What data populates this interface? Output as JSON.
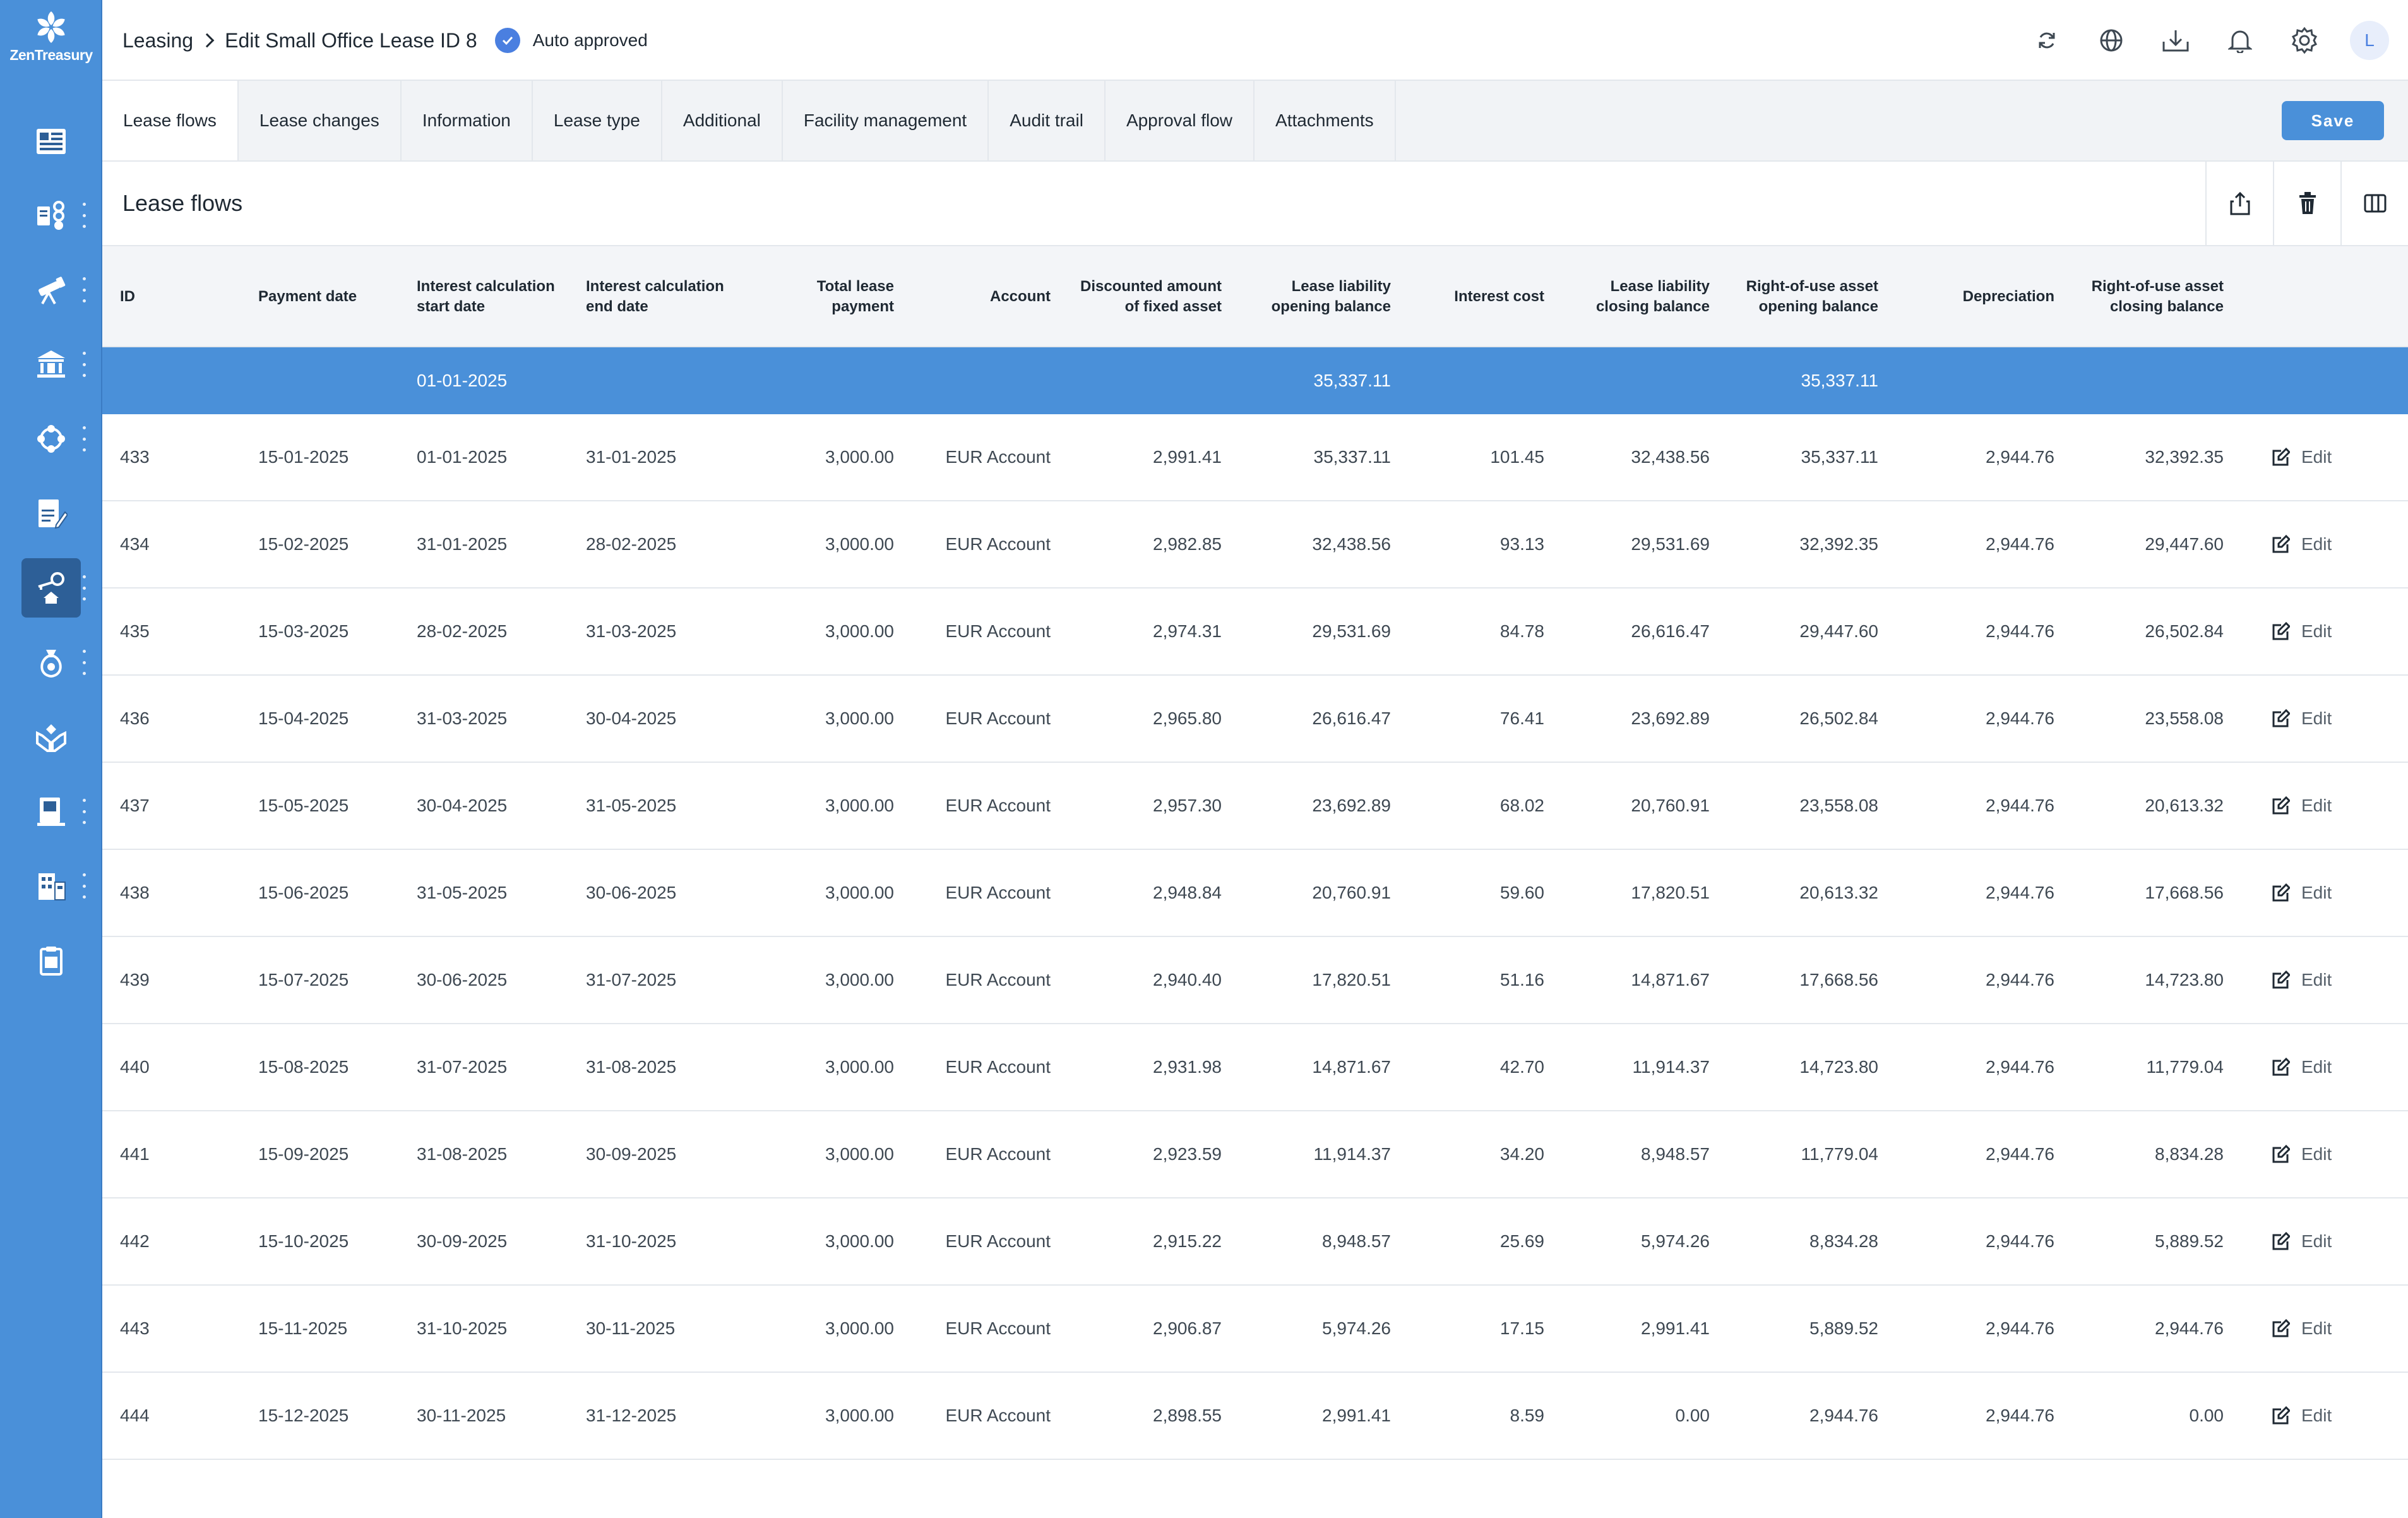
{
  "app": {
    "logo_text": "ZenTreasury",
    "brand_color": "#4a90d9"
  },
  "header": {
    "breadcrumb_root": "Leasing",
    "breadcrumb_page": "Edit Small Office Lease ID 8",
    "status_label": "Auto approved",
    "avatar_letter": "L"
  },
  "tabs": {
    "items": [
      "Lease flows",
      "Lease changes",
      "Information",
      "Lease type",
      "Additional",
      "Facility management",
      "Audit trail",
      "Approval flow",
      "Attachments"
    ],
    "active": "Lease flows",
    "save_label": "Save"
  },
  "panel": {
    "title": "Lease flows"
  },
  "table": {
    "columns": {
      "id": "ID",
      "payment_date": "Payment date",
      "ic_start": "Interest calculation start date",
      "ic_end": "Interest calculation end date",
      "total": "Total lease payment",
      "account": "Account",
      "discounted": "Discounted amount of fixed asset",
      "ll_open": "Lease liability opening balance",
      "interest": "Interest cost",
      "ll_close": "Lease liability closing balance",
      "rou_open": "Right-of-use asset opening balance",
      "depreciation": "Depreciation",
      "rou_close": "Right-of-use asset closing balance"
    },
    "opening_row": {
      "ic_start": "01-01-2025",
      "ll_open": "35,337.11",
      "rou_open": "35,337.11"
    },
    "edit_label": "Edit",
    "rows": [
      {
        "id": "433",
        "payment_date": "15-01-2025",
        "ic_start": "01-01-2025",
        "ic_end": "31-01-2025",
        "total": "3,000.00",
        "account": "EUR Account",
        "discounted": "2,991.41",
        "ll_open": "35,337.11",
        "interest": "101.45",
        "ll_close": "32,438.56",
        "rou_open": "35,337.11",
        "depreciation": "2,944.76",
        "rou_close": "32,392.35"
      },
      {
        "id": "434",
        "payment_date": "15-02-2025",
        "ic_start": "31-01-2025",
        "ic_end": "28-02-2025",
        "total": "3,000.00",
        "account": "EUR Account",
        "discounted": "2,982.85",
        "ll_open": "32,438.56",
        "interest": "93.13",
        "ll_close": "29,531.69",
        "rou_open": "32,392.35",
        "depreciation": "2,944.76",
        "rou_close": "29,447.60"
      },
      {
        "id": "435",
        "payment_date": "15-03-2025",
        "ic_start": "28-02-2025",
        "ic_end": "31-03-2025",
        "total": "3,000.00",
        "account": "EUR Account",
        "discounted": "2,974.31",
        "ll_open": "29,531.69",
        "interest": "84.78",
        "ll_close": "26,616.47",
        "rou_open": "29,447.60",
        "depreciation": "2,944.76",
        "rou_close": "26,502.84"
      },
      {
        "id": "436",
        "payment_date": "15-04-2025",
        "ic_start": "31-03-2025",
        "ic_end": "30-04-2025",
        "total": "3,000.00",
        "account": "EUR Account",
        "discounted": "2,965.80",
        "ll_open": "26,616.47",
        "interest": "76.41",
        "ll_close": "23,692.89",
        "rou_open": "26,502.84",
        "depreciation": "2,944.76",
        "rou_close": "23,558.08"
      },
      {
        "id": "437",
        "payment_date": "15-05-2025",
        "ic_start": "30-04-2025",
        "ic_end": "31-05-2025",
        "total": "3,000.00",
        "account": "EUR Account",
        "discounted": "2,957.30",
        "ll_open": "23,692.89",
        "interest": "68.02",
        "ll_close": "20,760.91",
        "rou_open": "23,558.08",
        "depreciation": "2,944.76",
        "rou_close": "20,613.32"
      },
      {
        "id": "438",
        "payment_date": "15-06-2025",
        "ic_start": "31-05-2025",
        "ic_end": "30-06-2025",
        "total": "3,000.00",
        "account": "EUR Account",
        "discounted": "2,948.84",
        "ll_open": "20,760.91",
        "interest": "59.60",
        "ll_close": "17,820.51",
        "rou_open": "20,613.32",
        "depreciation": "2,944.76",
        "rou_close": "17,668.56"
      },
      {
        "id": "439",
        "payment_date": "15-07-2025",
        "ic_start": "30-06-2025",
        "ic_end": "31-07-2025",
        "total": "3,000.00",
        "account": "EUR Account",
        "discounted": "2,940.40",
        "ll_open": "17,820.51",
        "interest": "51.16",
        "ll_close": "14,871.67",
        "rou_open": "17,668.56",
        "depreciation": "2,944.76",
        "rou_close": "14,723.80"
      },
      {
        "id": "440",
        "payment_date": "15-08-2025",
        "ic_start": "31-07-2025",
        "ic_end": "31-08-2025",
        "total": "3,000.00",
        "account": "EUR Account",
        "discounted": "2,931.98",
        "ll_open": "14,871.67",
        "interest": "42.70",
        "ll_close": "11,914.37",
        "rou_open": "14,723.80",
        "depreciation": "2,944.76",
        "rou_close": "11,779.04"
      },
      {
        "id": "441",
        "payment_date": "15-09-2025",
        "ic_start": "31-08-2025",
        "ic_end": "30-09-2025",
        "total": "3,000.00",
        "account": "EUR Account",
        "discounted": "2,923.59",
        "ll_open": "11,914.37",
        "interest": "34.20",
        "ll_close": "8,948.57",
        "rou_open": "11,779.04",
        "depreciation": "2,944.76",
        "rou_close": "8,834.28"
      },
      {
        "id": "442",
        "payment_date": "15-10-2025",
        "ic_start": "30-09-2025",
        "ic_end": "31-10-2025",
        "total": "3,000.00",
        "account": "EUR Account",
        "discounted": "2,915.22",
        "ll_open": "8,948.57",
        "interest": "25.69",
        "ll_close": "5,974.26",
        "rou_open": "8,834.28",
        "depreciation": "2,944.76",
        "rou_close": "5,889.52"
      },
      {
        "id": "443",
        "payment_date": "15-11-2025",
        "ic_start": "31-10-2025",
        "ic_end": "30-11-2025",
        "total": "3,000.00",
        "account": "EUR Account",
        "discounted": "2,906.87",
        "ll_open": "5,974.26",
        "interest": "17.15",
        "ll_close": "2,991.41",
        "rou_open": "5,889.52",
        "depreciation": "2,944.76",
        "rou_close": "2,944.76"
      },
      {
        "id": "444",
        "payment_date": "15-12-2025",
        "ic_start": "30-11-2025",
        "ic_end": "31-12-2025",
        "total": "3,000.00",
        "account": "EUR Account",
        "discounted": "2,898.55",
        "ll_open": "2,991.41",
        "interest": "8.59",
        "ll_close": "0.00",
        "rou_open": "2,944.76",
        "depreciation": "2,944.76",
        "rou_close": "0.00"
      }
    ]
  }
}
